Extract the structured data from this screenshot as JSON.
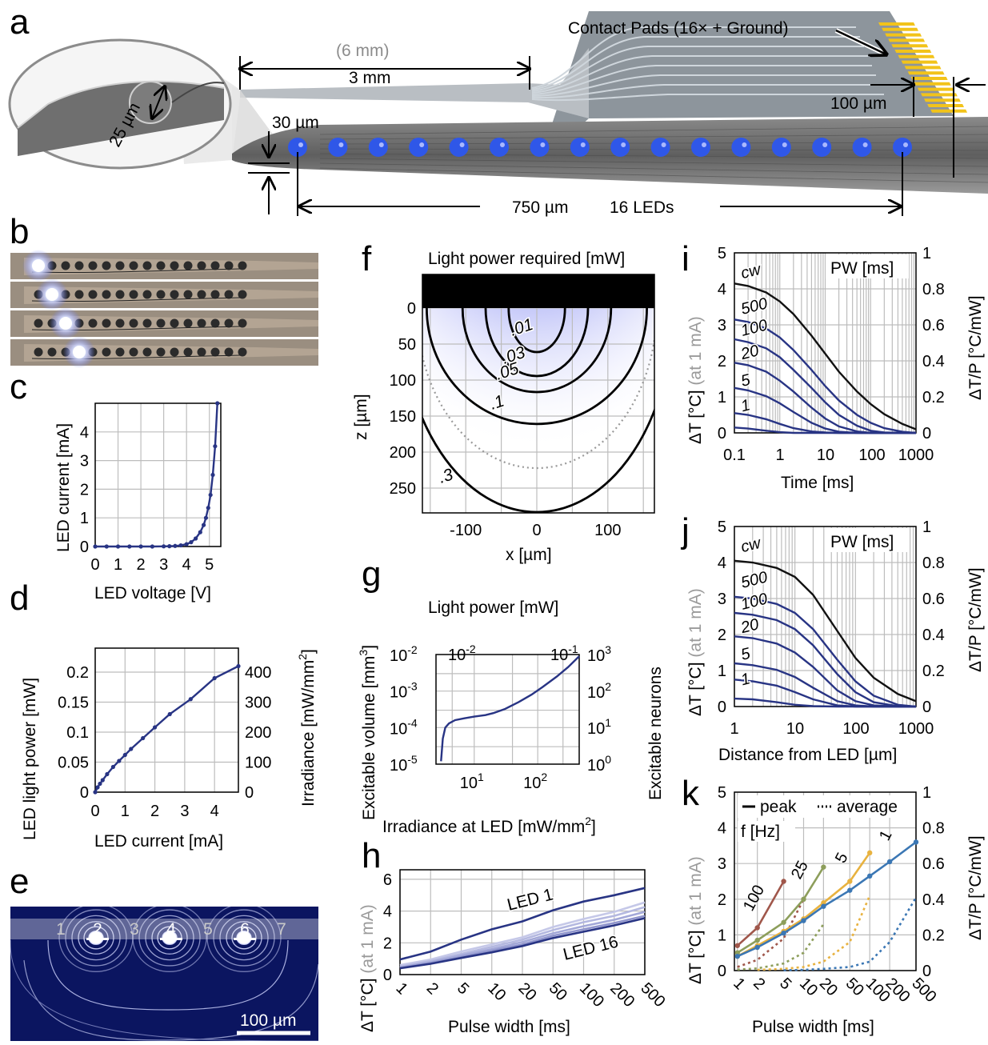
{
  "panel_a": {
    "letter": "a",
    "dim_6mm": "(6 mm)",
    "dim_3mm": "3 mm",
    "contact_pads": "Contact Pads (16× + Ground)",
    "dim_100um": "100 µm",
    "dim_30um": "30 µm",
    "dim_25um": "25 µm",
    "dim_750um": "750 µm",
    "leds_16": "16 LEDs",
    "led_count": 16
  },
  "panel_b": {
    "letter": "b"
  },
  "panel_c": {
    "letter": "c"
  },
  "panel_d": {
    "letter": "d"
  },
  "panel_e": {
    "letter": "e",
    "site_labels": [
      "1",
      "2",
      "3",
      "4",
      "5",
      "6",
      "7"
    ],
    "scale_bar": "100 µm"
  },
  "panel_f": {
    "letter": "f",
    "title": "Light power required [mW]",
    "xlabel": "x [µm]",
    "ylabel": "z [µm]",
    "xticks": [
      "-100",
      "0",
      "100"
    ],
    "yticks": [
      "0",
      "50",
      "100",
      "150",
      "200",
      "250"
    ],
    "contour_labels": [
      ".01",
      ".03",
      ".05",
      ".1",
      ".3"
    ]
  },
  "panel_g": {
    "letter": "g"
  },
  "panel_h": {
    "letter": "h",
    "led1": "LED 1",
    "led16": "LED 16"
  },
  "panel_i": {
    "letter": "i"
  },
  "panel_j": {
    "letter": "j"
  },
  "panel_k": {
    "letter": "k",
    "legend_peak": "peak",
    "legend_average": "average",
    "freq_title": "f [Hz]"
  },
  "chart_data": [
    {
      "id": "c",
      "type": "line",
      "xlabel": "LED voltage [V]",
      "ylabel": "LED current [mA]",
      "xlim": [
        0,
        5.5
      ],
      "ylim": [
        0,
        5
      ],
      "xticks": [
        0,
        1,
        2,
        3,
        4,
        5
      ],
      "yticks": [
        0,
        1,
        2,
        3,
        4
      ],
      "x": [
        0,
        0.5,
        1,
        1.5,
        2,
        2.5,
        3,
        3.25,
        3.5,
        3.75,
        4,
        4.2,
        4.4,
        4.6,
        4.75,
        4.85,
        4.95,
        5.05,
        5.15,
        5.25,
        5.35
      ],
      "y": [
        0,
        0,
        0,
        0,
        0,
        0,
        0.005,
        0.01,
        0.02,
        0.04,
        0.08,
        0.15,
        0.28,
        0.5,
        0.75,
        1.0,
        1.35,
        1.8,
        2.5,
        3.5,
        5.0
      ]
    },
    {
      "id": "d",
      "type": "line",
      "xlabel": "LED current [mA]",
      "ylabel": "LED light power [mW]",
      "y2label": "Irradiance [mW/mm",
      "xlim": [
        0,
        4.8
      ],
      "ylim": [
        0,
        0.24
      ],
      "y2lim": [
        0,
        480
      ],
      "xticks": [
        0,
        1,
        2,
        3,
        4
      ],
      "yticks": [
        0,
        0.05,
        0.1,
        0.15,
        0.2
      ],
      "y2ticks": [
        0,
        100,
        200,
        300,
        400
      ],
      "ytick_labels": [
        "0",
        "0.05",
        "0.1",
        "0.15",
        "0.2"
      ],
      "x": [
        0,
        0.08,
        0.16,
        0.25,
        0.4,
        0.6,
        0.8,
        1.0,
        1.2,
        1.6,
        2.0,
        2.5,
        3.2,
        4.0,
        4.8
      ],
      "y": [
        0,
        0.008,
        0.014,
        0.02,
        0.03,
        0.042,
        0.052,
        0.062,
        0.072,
        0.09,
        0.108,
        0.13,
        0.155,
        0.19,
        0.21
      ]
    },
    {
      "id": "g",
      "type": "line",
      "scale": "log",
      "xlabel": "Irradiance at LED [mW/mm",
      "ylabel": "Excitable volume [mm",
      "x2label": "Light power [mW]",
      "y2label": "Excitable neurons",
      "xlim": [
        2.5,
        450
      ],
      "ylim": [
        1e-05,
        0.01
      ],
      "xtick_labels": [
        "10",
        "10"
      ],
      "xtick_exps": [
        "1",
        "2"
      ],
      "ytick_exps": [
        "-5",
        "-4",
        "-3",
        "-2"
      ],
      "x2tick_exps": [
        "-2",
        "-1"
      ],
      "y2tick_exps": [
        "0",
        "1",
        "2",
        "3"
      ],
      "x": [
        3.0,
        3.2,
        3.5,
        4,
        5,
        7,
        10,
        15,
        20,
        30,
        50,
        80,
        120,
        200,
        300,
        450
      ],
      "y": [
        1.2e-05,
        5e-05,
        0.0001,
        0.00013,
        0.00016,
        0.00018,
        0.0002,
        0.00022,
        0.00025,
        0.00032,
        0.0005,
        0.0008,
        0.0013,
        0.0025,
        0.0045,
        0.009
      ]
    },
    {
      "id": "h",
      "type": "line",
      "xlabel": "Pulse width [ms]",
      "ylabel": "ΔT [°C]",
      "ylabel_note": "(at 1 mA)",
      "ylim": [
        0,
        6.6
      ],
      "yticks": [
        0,
        2,
        4,
        6
      ],
      "categories": [
        "1",
        "2",
        "5",
        "10",
        "20",
        "50",
        "100",
        "200",
        "500"
      ],
      "series": [
        {
          "name": "LED 1",
          "color": "#283484",
          "values": [
            0.95,
            1.45,
            2.2,
            2.85,
            3.35,
            4.05,
            4.6,
            5.0,
            5.45
          ]
        },
        {
          "values": [
            0.6,
            0.95,
            1.45,
            1.9,
            2.35,
            3.0,
            3.5,
            3.95,
            4.55
          ]
        },
        {
          "values": [
            0.5,
            0.85,
            1.3,
            1.75,
            2.2,
            2.8,
            3.3,
            3.7,
            4.25
          ]
        },
        {
          "values": [
            0.45,
            0.78,
            1.2,
            1.6,
            2.05,
            2.6,
            3.05,
            3.45,
            3.95
          ]
        },
        {
          "values": [
            0.42,
            0.72,
            1.1,
            1.5,
            1.9,
            2.45,
            2.85,
            3.25,
            3.7
          ]
        },
        {
          "name": "LED 16",
          "color": "#283484",
          "values": [
            0.4,
            0.68,
            1.05,
            1.4,
            1.8,
            2.3,
            2.7,
            3.1,
            3.55
          ]
        }
      ]
    },
    {
      "id": "i",
      "type": "line",
      "xlabel": "Time [ms]",
      "ylabel": "ΔT [°C]",
      "ylabel_note": "(at 1 mA)",
      "y2label": "ΔT/P [°C/mW]",
      "legend_title": "PW [ms]",
      "xlim": [
        0.1,
        1000
      ],
      "ylim": [
        0,
        5
      ],
      "y2lim": [
        0,
        1
      ],
      "xtick_labels": [
        "0.1",
        "1",
        "10",
        "100",
        "1000"
      ],
      "yticks": [
        0,
        1,
        2,
        3,
        4,
        5
      ],
      "y2tick_labels": [
        "0",
        "0.2",
        "0.4",
        "0.6",
        "0.8",
        "1"
      ],
      "x": [
        0.1,
        0.2,
        0.5,
        1,
        2,
        5,
        10,
        20,
        50,
        100,
        200,
        500,
        1000
      ],
      "series": [
        {
          "name": "cw",
          "color": "#111111",
          "values": [
            4.15,
            4.08,
            3.9,
            3.65,
            3.3,
            2.7,
            2.2,
            1.7,
            1.15,
            0.8,
            0.52,
            0.25,
            0.1
          ]
        },
        {
          "name": "500",
          "color": "#283484",
          "values": [
            3.15,
            3.08,
            2.9,
            2.65,
            2.3,
            1.75,
            1.3,
            0.9,
            0.5,
            0.28,
            0.13,
            0.03,
            0
          ]
        },
        {
          "name": "100",
          "color": "#283484",
          "values": [
            2.6,
            2.52,
            2.35,
            2.1,
            1.75,
            1.25,
            0.85,
            0.5,
            0.2,
            0.06,
            0.01,
            0,
            0
          ]
        },
        {
          "name": "20",
          "color": "#283484",
          "values": [
            1.95,
            1.88,
            1.7,
            1.45,
            1.15,
            0.7,
            0.4,
            0.18,
            0.04,
            0,
            0,
            0,
            0
          ]
        },
        {
          "name": "5",
          "color": "#283484",
          "values": [
            1.25,
            1.18,
            1.02,
            0.82,
            0.58,
            0.28,
            0.12,
            0.03,
            0,
            0,
            0,
            0,
            0
          ]
        },
        {
          "name": "1",
          "color": "#283484",
          "values": [
            0.55,
            0.5,
            0.38,
            0.25,
            0.13,
            0.04,
            0.01,
            0,
            0,
            0,
            0,
            0,
            0
          ]
        },
        {
          "color": "#283484",
          "values": [
            0.15,
            0.12,
            0.06,
            0.02,
            0,
            0,
            0,
            0,
            0,
            0,
            0,
            0,
            0
          ]
        }
      ]
    },
    {
      "id": "j",
      "type": "line",
      "xlabel": "Distance from LED [µm]",
      "ylabel": "ΔT [°C]",
      "ylabel_note": "(at 1 mA)",
      "y2label": "ΔT/P [°C/mW]",
      "legend_title": "PW [ms]",
      "xlim": [
        1,
        1000
      ],
      "ylim": [
        0,
        5
      ],
      "y2lim": [
        0,
        1
      ],
      "xtick_labels": [
        "1",
        "10",
        "100",
        "1000"
      ],
      "yticks": [
        0,
        1,
        2,
        3,
        4,
        5
      ],
      "y2tick_labels": [
        "0",
        "0.2",
        "0.4",
        "0.6",
        "0.8",
        "1"
      ],
      "x": [
        1,
        2,
        5,
        10,
        20,
        50,
        100,
        200,
        500,
        1000
      ],
      "series": [
        {
          "name": "cw",
          "color": "#111111",
          "values": [
            4.05,
            4.0,
            3.85,
            3.6,
            3.1,
            2.1,
            1.35,
            0.8,
            0.35,
            0.15
          ]
        },
        {
          "name": "500",
          "color": "#283484",
          "values": [
            3.05,
            3.0,
            2.85,
            2.6,
            2.15,
            1.3,
            0.7,
            0.3,
            0.05,
            0
          ]
        },
        {
          "name": "100",
          "color": "#283484",
          "values": [
            2.6,
            2.55,
            2.4,
            2.15,
            1.7,
            0.9,
            0.4,
            0.12,
            0.01,
            0
          ]
        },
        {
          "name": "20",
          "color": "#283484",
          "values": [
            1.95,
            1.9,
            1.75,
            1.5,
            1.1,
            0.45,
            0.15,
            0.03,
            0,
            0
          ]
        },
        {
          "name": "5",
          "color": "#283484",
          "values": [
            1.2,
            1.15,
            1.02,
            0.82,
            0.52,
            0.15,
            0.03,
            0,
            0,
            0
          ]
        },
        {
          "name": "1",
          "color": "#283484",
          "values": [
            0.75,
            0.7,
            0.58,
            0.4,
            0.2,
            0.03,
            0,
            0,
            0,
            0
          ]
        },
        {
          "color": "#283484",
          "values": [
            0.22,
            0.2,
            0.12,
            0.05,
            0.01,
            0,
            0,
            0,
            0,
            0
          ]
        }
      ]
    },
    {
      "id": "k",
      "type": "line",
      "xlabel": "Pulse width [ms]",
      "ylabel": "ΔT [°C]",
      "ylabel_note": "(at 1 mA)",
      "y2label": "ΔT/P [°C/mW]",
      "ylim": [
        0,
        5
      ],
      "yticks": [
        0,
        1,
        2,
        3,
        4,
        5
      ],
      "y2tick_labels": [
        "0",
        "0.2",
        "0.4",
        "0.6",
        "0.8",
        "1"
      ],
      "xtick_labels": [
        "1",
        "2",
        "5",
        "10",
        "20",
        "50",
        "100",
        "200",
        "500"
      ],
      "series": [
        {
          "name": "100",
          "color": "#a0574b",
          "peak": [
            [
              1,
              0.7
            ],
            [
              2,
              1.2
            ],
            [
              5,
              2.5
            ]
          ],
          "average": [
            [
              1,
              0.1
            ],
            [
              2,
              0.3
            ],
            [
              5,
              0.9
            ],
            [
              10,
              2.0
            ]
          ]
        },
        {
          "name": "25",
          "color": "#8d9e5b",
          "peak": [
            [
              1,
              0.5
            ],
            [
              2,
              0.85
            ],
            [
              5,
              1.35
            ],
            [
              10,
              2.0
            ],
            [
              20,
              2.9
            ]
          ],
          "average": [
            [
              1,
              0.03
            ],
            [
              2,
              0.06
            ],
            [
              5,
              0.2
            ],
            [
              10,
              0.5
            ],
            [
              20,
              1.3
            ]
          ]
        },
        {
          "name": "5",
          "color": "#e8b23f",
          "peak": [
            [
              1,
              0.4
            ],
            [
              2,
              0.7
            ],
            [
              5,
              1.1
            ],
            [
              10,
              1.45
            ],
            [
              20,
              1.9
            ],
            [
              50,
              2.5
            ],
            [
              100,
              3.3
            ]
          ],
          "average": [
            [
              2,
              0.02
            ],
            [
              5,
              0.05
            ],
            [
              10,
              0.1
            ],
            [
              20,
              0.25
            ],
            [
              50,
              0.8
            ],
            [
              100,
              2.1
            ]
          ]
        },
        {
          "name": "1",
          "color": "#3b77b4",
          "peak": [
            [
              1,
              0.4
            ],
            [
              2,
              0.65
            ],
            [
              5,
              1.05
            ],
            [
              10,
              1.4
            ],
            [
              20,
              1.8
            ],
            [
              50,
              2.25
            ],
            [
              100,
              2.65
            ],
            [
              200,
              3.05
            ],
            [
              500,
              3.6
            ]
          ],
          "average": [
            [
              5,
              0.01
            ],
            [
              10,
              0.02
            ],
            [
              20,
              0.05
            ],
            [
              50,
              0.1
            ],
            [
              100,
              0.25
            ],
            [
              200,
              0.8
            ],
            [
              500,
              2.05
            ]
          ]
        }
      ]
    }
  ]
}
